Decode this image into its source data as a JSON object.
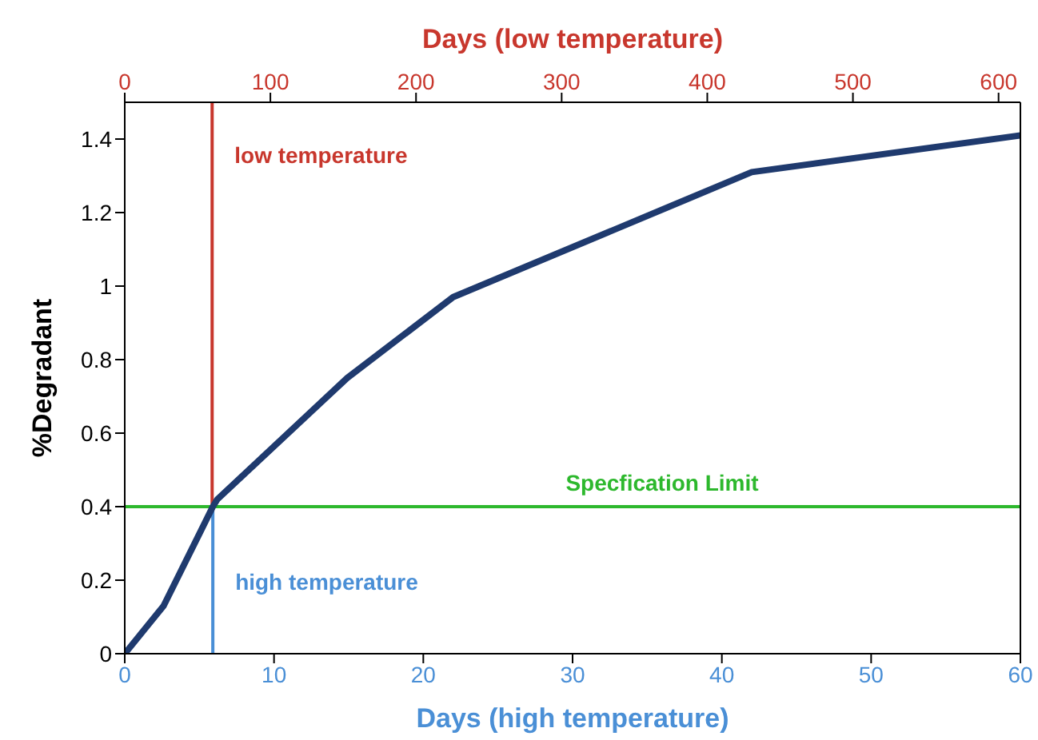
{
  "chart_data": {
    "type": "line",
    "xlabel": "Days (high temperature)",
    "x2label": "Days (low temperature)",
    "ylabel": "%Degradant",
    "x": [
      0,
      2.6,
      5.9,
      6.2,
      14.9,
      22,
      42,
      60
    ],
    "series": [
      {
        "color": "#1f3a6e",
        "values": [
          0,
          0.13,
          0.4,
          0.42,
          0.75,
          0.97,
          1.31,
          1.41
        ]
      }
    ],
    "xlim": [
      0,
      60
    ],
    "xticks": [
      0,
      10,
      20,
      30,
      40,
      50,
      60
    ],
    "x2lim": [
      0,
      615
    ],
    "x2ticks": [
      0,
      100,
      200,
      300,
      400,
      500,
      600
    ],
    "ylim": [
      0,
      1.5
    ],
    "yticks": [
      0,
      0.2,
      0.4,
      0.6,
      0.8,
      1,
      1.2,
      1.4
    ],
    "ref_lines": [
      {
        "axis": "y",
        "value": 0.4,
        "label": "Specfication Limit",
        "color": "#2db82d"
      },
      {
        "axis": "x2",
        "value": 60,
        "label": "low temperature",
        "color": "#c8372d"
      },
      {
        "axis": "x",
        "value": 5.9,
        "label": "high temperature",
        "color": "#4a8fd6"
      }
    ],
    "grid": false,
    "legend": false,
    "marker": "none",
    "line_style": "solid"
  }
}
